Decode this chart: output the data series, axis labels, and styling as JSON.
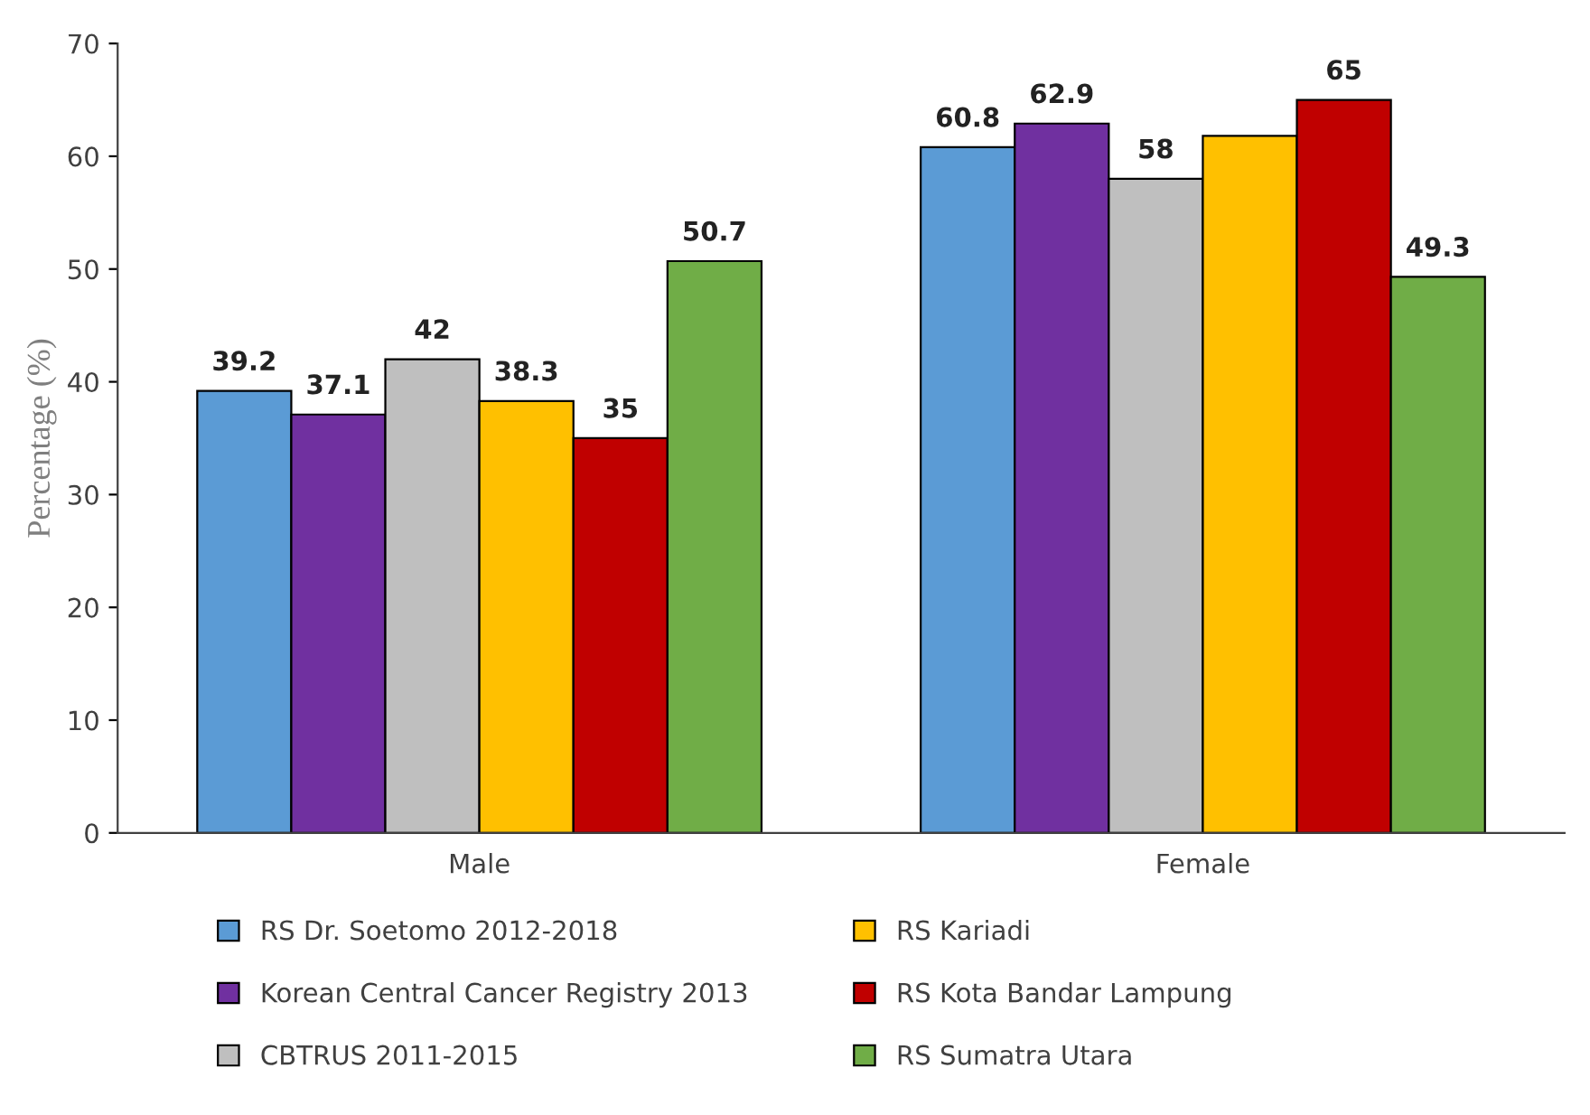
{
  "chart_data": {
    "type": "bar",
    "ylabel": "Percentage (%)",
    "categories": [
      "Male",
      "Female"
    ],
    "series": [
      {
        "name": "RS Dr. Soetomo 2012-2018",
        "color": "#5b9bd5",
        "values": [
          39.2,
          60.8
        ],
        "value_labels": [
          "39.2",
          "60.8"
        ]
      },
      {
        "name": "Korean Central Cancer Registry 2013",
        "color": "#7030a0",
        "values": [
          37.1,
          62.9
        ],
        "value_labels": [
          "37.1",
          "62.9"
        ]
      },
      {
        "name": "CBTRUS 2011-2015",
        "color": "#bfbfbf",
        "values": [
          42,
          58
        ],
        "value_labels": [
          "42",
          "58"
        ]
      },
      {
        "name": "RS Kariadi",
        "color": "#ffc000",
        "values": [
          38.3,
          61.8
        ],
        "value_labels": [
          "38.3",
          null
        ]
      },
      {
        "name": "RS Kota Bandar Lampung",
        "color": "#c00000",
        "values": [
          35,
          65
        ],
        "value_labels": [
          "35",
          "65"
        ]
      },
      {
        "name": "RS Sumatra Utara",
        "color": "#70ad47",
        "values": [
          50.7,
          49.3
        ],
        "value_labels": [
          "50.7",
          "49.3"
        ]
      }
    ],
    "ylim": [
      0,
      70
    ],
    "yticks": [
      0,
      10,
      20,
      30,
      40,
      50,
      60,
      70
    ],
    "grid": false,
    "legend": "bottom"
  }
}
